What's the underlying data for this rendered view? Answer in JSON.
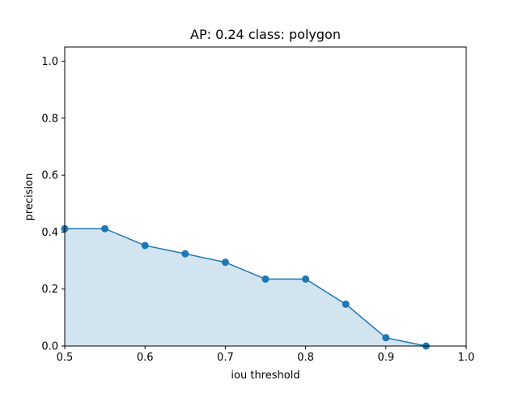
{
  "chart_data": {
    "type": "area",
    "title": "AP: 0.24 class: polygon",
    "xlabel": "iou threshold",
    "ylabel": "precision",
    "xlim": [
      0.5,
      1.0
    ],
    "ylim": [
      0.0,
      1.05
    ],
    "xticks": [
      "0.5",
      "0.6",
      "0.7",
      "0.8",
      "0.9",
      "1.0"
    ],
    "yticks": [
      "0.0",
      "0.2",
      "0.4",
      "0.6",
      "0.8",
      "1.0"
    ],
    "grid": false,
    "legend": "none",
    "series": [
      {
        "x": [
          0.5,
          0.55,
          0.6,
          0.65,
          0.7,
          0.75,
          0.8,
          0.85,
          0.9,
          0.95
        ],
        "y": [
          0.412,
          0.412,
          0.353,
          0.324,
          0.294,
          0.235,
          0.235,
          0.147,
          0.029,
          0.0
        ],
        "line_color": "#1f77b4",
        "fill_color": "#1f77b4",
        "fill_opacity": 0.2
      }
    ]
  }
}
